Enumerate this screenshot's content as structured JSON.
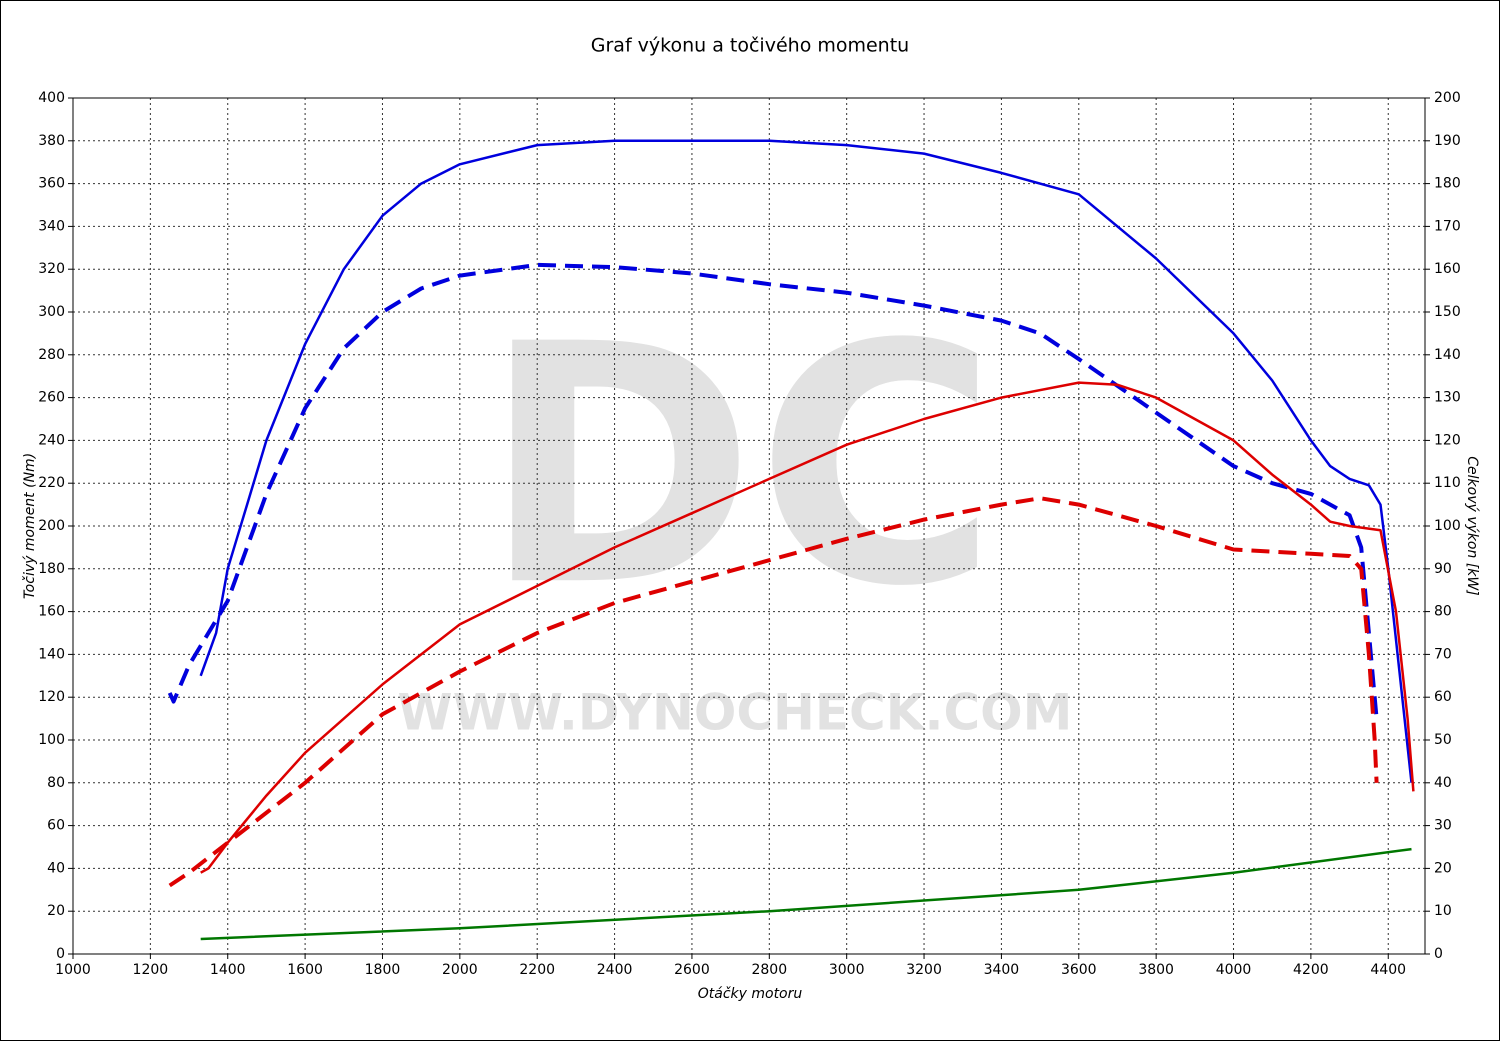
{
  "chart_data": {
    "type": "line",
    "title": "Graf výkonu a točivého momentu",
    "xlabel": "Otáčky motoru",
    "ylabel": "Točivý moment (Nm)",
    "y2label": "Celkový výkon [kW]",
    "watermark": [
      "DC",
      "WWW.DYNOCHECK.COM"
    ],
    "grid": true,
    "xlim": [
      1000,
      4495
    ],
    "xticks": [
      1000,
      1200,
      1400,
      1600,
      1800,
      2000,
      2200,
      2400,
      2600,
      2800,
      3000,
      3200,
      3400,
      3600,
      3800,
      4000,
      4200,
      4400
    ],
    "ylim": [
      0,
      400
    ],
    "yticks": [
      0,
      20,
      40,
      60,
      80,
      100,
      120,
      140,
      160,
      180,
      200,
      220,
      240,
      260,
      280,
      300,
      320,
      340,
      360,
      380,
      400
    ],
    "y2lim": [
      0,
      200
    ],
    "y2ticks": [
      0,
      10,
      20,
      30,
      40,
      50,
      60,
      70,
      80,
      90,
      100,
      110,
      120,
      130,
      140,
      150,
      160,
      170,
      180,
      190,
      200
    ],
    "series": [
      {
        "color": "#0000dd",
        "dash": false,
        "x": [
          1330,
          1350,
          1370,
          1400,
          1450,
          1500,
          1600,
          1700,
          1800,
          1900,
          2000,
          2200,
          2400,
          2600,
          2800,
          3000,
          3200,
          3400,
          3600,
          3800,
          4000,
          4100,
          4200,
          4250,
          4300,
          4350,
          4380,
          4400,
          4430,
          4460
        ],
        "values": [
          130,
          140,
          150,
          180,
          210,
          240,
          285,
          320,
          345,
          360,
          369,
          378,
          380,
          380,
          380,
          378,
          374,
          365,
          355,
          325,
          290,
          268,
          240,
          228,
          222,
          219,
          210,
          180,
          130,
          80
        ]
      },
      {
        "color": "#0000dd",
        "dash": true,
        "x": [
          1250,
          1260,
          1300,
          1400,
          1500,
          1600,
          1700,
          1800,
          1900,
          2000,
          2200,
          2400,
          2600,
          2800,
          3000,
          3200,
          3400,
          3500,
          3600,
          3800,
          4000,
          4100,
          4200,
          4300,
          4330,
          4350,
          4370
        ],
        "values": [
          122,
          118,
          135,
          165,
          215,
          255,
          283,
          300,
          311,
          317,
          322,
          321,
          318,
          313,
          309,
          303,
          296,
          290,
          278,
          253,
          228,
          220,
          215,
          205,
          190,
          150,
          110
        ]
      },
      {
        "color": "#dd0000",
        "dash": false,
        "axis": "y2",
        "x": [
          1330,
          1350,
          1400,
          1500,
          1600,
          1800,
          2000,
          2200,
          2400,
          2600,
          2800,
          3000,
          3200,
          3400,
          3600,
          3700,
          3800,
          4000,
          4100,
          4200,
          4250,
          4300,
          4380,
          4420,
          4450,
          4465
        ],
        "values": [
          19,
          20,
          26,
          37,
          47,
          63,
          77,
          86,
          95,
          103,
          111,
          119,
          125,
          130,
          133.5,
          133,
          130,
          120,
          112,
          105,
          101,
          100,
          99,
          80,
          55,
          38
        ]
      },
      {
        "color": "#dd0000",
        "dash": true,
        "axis": "y2",
        "x": [
          1250,
          1300,
          1400,
          1600,
          1800,
          2000,
          2200,
          2400,
          2600,
          2800,
          3000,
          3200,
          3400,
          3500,
          3600,
          3800,
          4000,
          4200,
          4300,
          4330,
          4350,
          4365,
          4370
        ],
        "values": [
          16,
          19,
          26,
          40,
          56,
          66,
          75,
          82,
          87,
          92,
          97,
          101.5,
          105,
          106.5,
          105,
          100,
          94.5,
          93.5,
          93,
          90,
          70,
          50,
          40
        ]
      },
      {
        "color": "#007700",
        "dash": false,
        "axis": "y2",
        "x": [
          1330,
          2000,
          2800,
          3600,
          4000,
          4460
        ],
        "values": [
          3.5,
          6,
          10,
          15,
          19,
          24.5
        ]
      }
    ]
  }
}
